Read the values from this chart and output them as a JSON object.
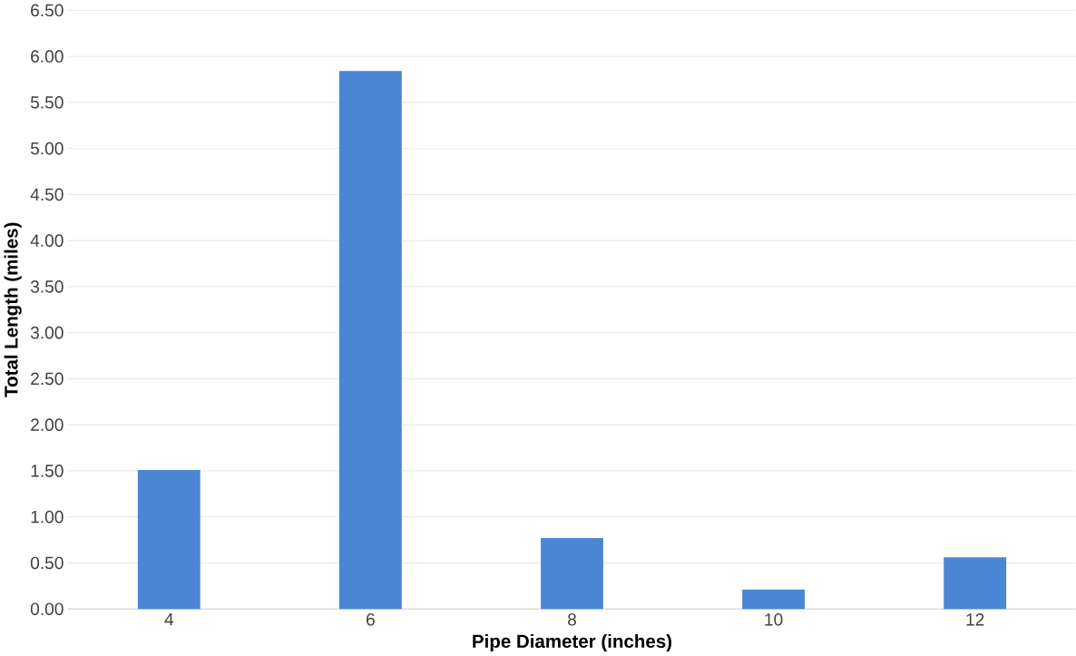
{
  "chart_data": {
    "type": "bar",
    "xlabel": "Pipe Diameter (inches)",
    "ylabel": "Total Length (miles)",
    "categories": [
      "4",
      "6",
      "8",
      "10",
      "12"
    ],
    "values": [
      1.51,
      5.84,
      0.77,
      0.21,
      0.56
    ],
    "color": "#4a86d4",
    "ylim": [
      0,
      6.5
    ],
    "yticks": [
      {
        "value": 0,
        "label": "0.00"
      },
      {
        "value": 0.5,
        "label": "0.50"
      },
      {
        "value": 1,
        "label": "1.00"
      },
      {
        "value": 1.5,
        "label": "1.50"
      },
      {
        "value": 2,
        "label": "2.00"
      },
      {
        "value": 2.5,
        "label": "2.50"
      },
      {
        "value": 3,
        "label": "3.00"
      },
      {
        "value": 3.5,
        "label": "3.50"
      },
      {
        "value": 4,
        "label": "4.00"
      },
      {
        "value": 4.5,
        "label": "4.50"
      },
      {
        "value": 5,
        "label": "5.00"
      },
      {
        "value": 5.5,
        "label": "5.50"
      },
      {
        "value": 6,
        "label": "6.00"
      },
      {
        "value": 6.5,
        "label": "6.50"
      }
    ],
    "grid": "y"
  }
}
